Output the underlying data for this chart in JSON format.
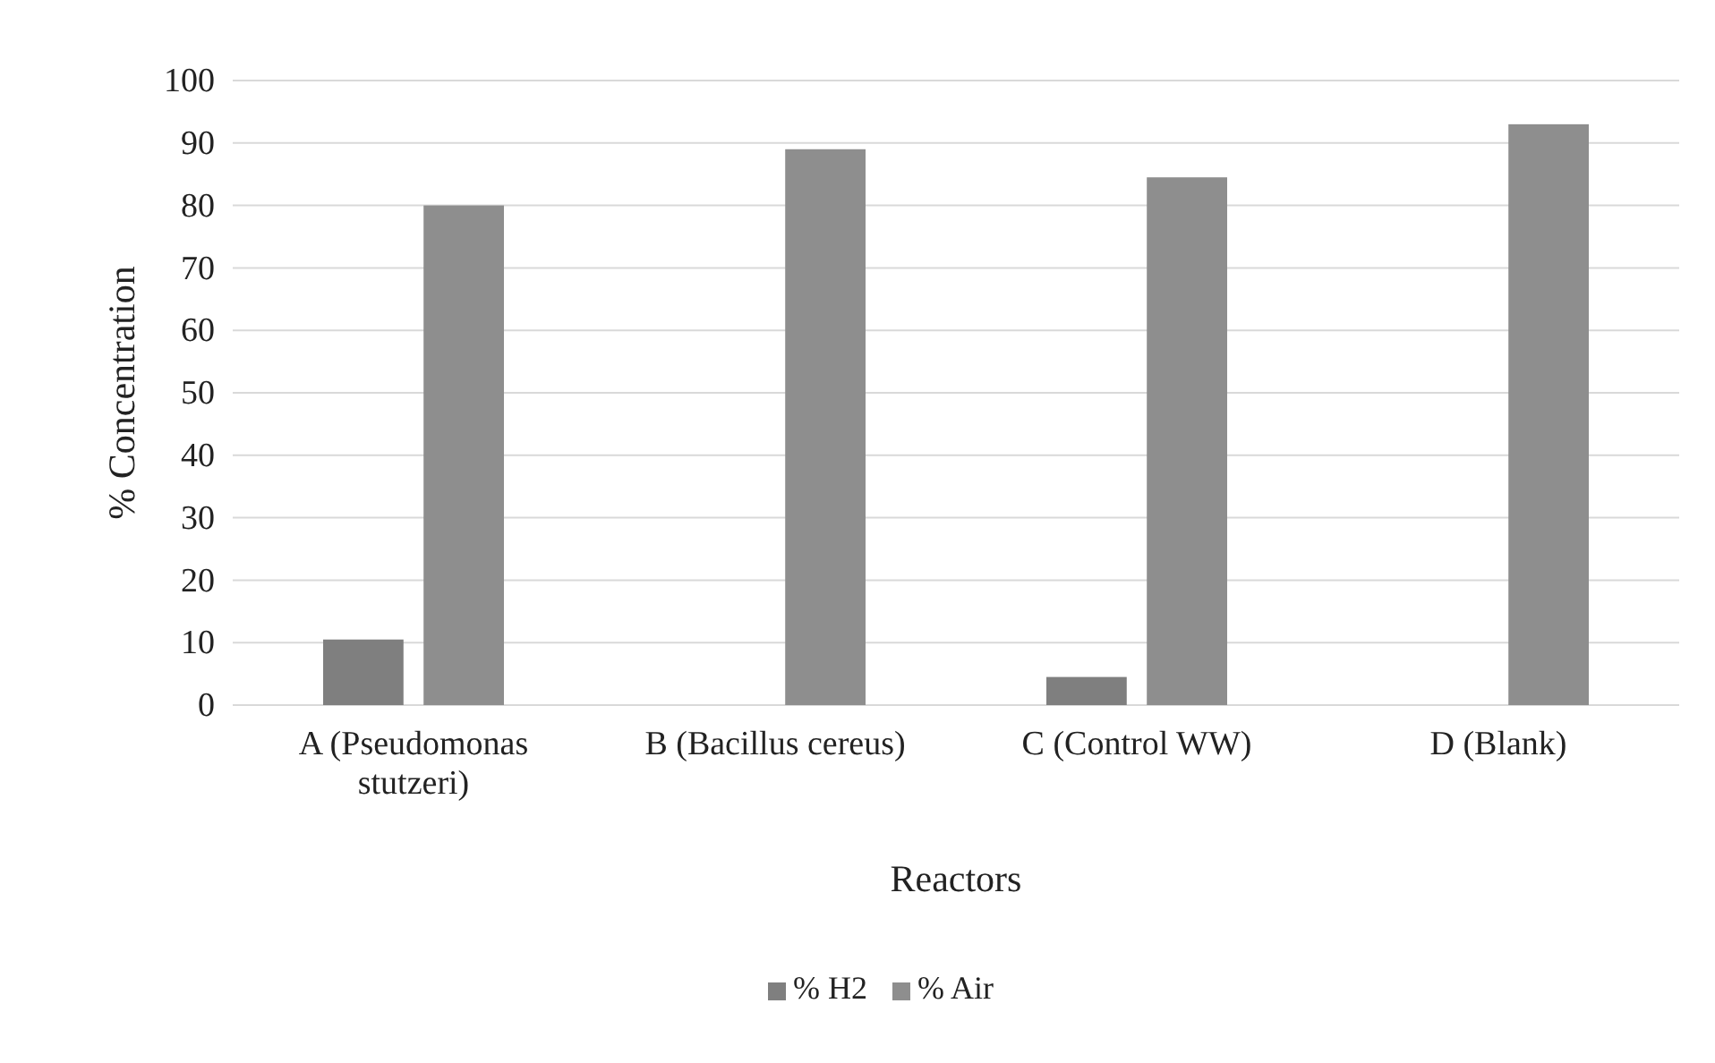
{
  "chart_data": {
    "type": "bar",
    "xlabel": "Reactors",
    "ylabel": "% Concentration",
    "categories": [
      "A (Pseudomonas stutzeri)",
      "B (Bacillus cereus)",
      "C (Control WW)",
      "D (Blank)"
    ],
    "series": [
      {
        "name": "% H2",
        "color": "#7f7f7f",
        "values": [
          10.5,
          0,
          4.5,
          0
        ]
      },
      {
        "name": "% Air",
        "color": "#8e8e8e",
        "values": [
          80,
          89,
          84.5,
          93
        ]
      }
    ],
    "ylim": [
      0,
      100
    ],
    "yticks": [
      0,
      10,
      20,
      30,
      40,
      50,
      60,
      70,
      80,
      90,
      100
    ],
    "grid": "y",
    "legend": "bottom"
  }
}
